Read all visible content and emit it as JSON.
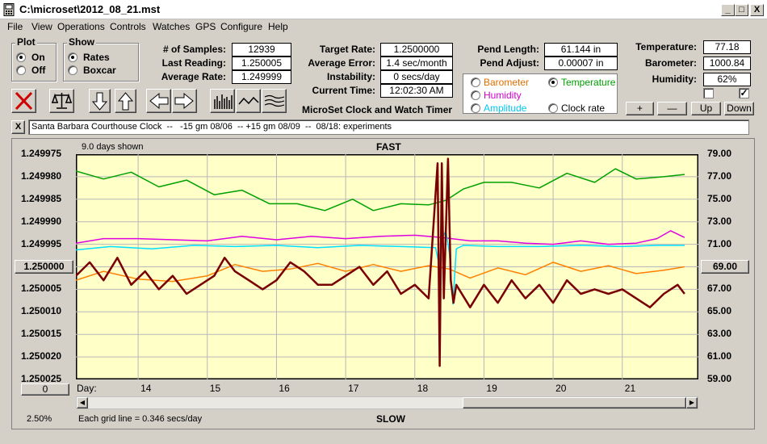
{
  "window": {
    "title": "C:\\microset\\2012_08_21.mst",
    "minimize": "_",
    "maximize": "□",
    "close": "X"
  },
  "menu": [
    "File",
    "View",
    "Operations",
    "Controls",
    "Watches",
    "GPS",
    "Configure",
    "Help"
  ],
  "plot_group": {
    "title": "Plot",
    "on": "On",
    "off": "Off",
    "selected": "On"
  },
  "show_group": {
    "title": "Show",
    "rates": "Rates",
    "boxcar": "Boxcar",
    "selected": "Rates"
  },
  "stats": {
    "samples_label": "# of Samples:",
    "samples": "12939",
    "last_label": "Last Reading:",
    "last": "1.250005",
    "avg_label": "Average Rate:",
    "avg": "1.249999"
  },
  "rates": {
    "target_label": "Target Rate:",
    "target": "1.2500000",
    "error_label": "Average Error:",
    "error": "1.4 sec/month",
    "instab_label": "Instability:",
    "instab": "0 secs/day",
    "time_label": "Current Time:",
    "time": "12:02:30 AM"
  },
  "pend": {
    "length_label": "Pend Length:",
    "length": "61.144 in",
    "adjust_label": "Pend Adjust:",
    "adjust": "0.00007 in"
  },
  "env": {
    "temp_label": "Temperature:",
    "temp": "77.18",
    "baro_label": "Barometer:",
    "baro": "1000.84",
    "hum_label": "Humidity:",
    "hum": "62%"
  },
  "series_select": {
    "barometer": "Barometer",
    "temperature": "Temperature",
    "humidity": "Humidity",
    "amplitude": "Amplitude",
    "clock_rate": "Clock rate",
    "selected": "Temperature"
  },
  "scale_buttons": {
    "plus": "+",
    "minus": "—",
    "up": "Up",
    "down": "Down"
  },
  "app_caption": "MicroSet Clock and Watch Timer",
  "notes": "Santa Barbara Courthouse Clock  --   -15 gm 08/06  -- +15 gm 08/09  --  08/18: experiments",
  "notes_close": "X",
  "chart": {
    "days_shown": "9.0 days shown",
    "top_label": "FAST",
    "bottom_label": "SLOW",
    "day_label": "Day:",
    "grid_note": "Each grid line = 0.346 secs/day",
    "zoom": "2.50%",
    "left_reference": "1.250000",
    "right_reference": "69.00",
    "scroll_value": "0"
  },
  "colors": {
    "plot_bg": "#ffffc8",
    "rate": "#7a0000",
    "temperature": "#00a000",
    "humidity": "#e000e0",
    "barometer": "#ff8000",
    "amplitude": "#00e0ff"
  },
  "chart_data": {
    "type": "line",
    "title": "",
    "xlabel": "Day:",
    "x_ticks": [
      "14",
      "15",
      "16",
      "17",
      "18",
      "19",
      "20",
      "21"
    ],
    "y_left_label": "",
    "y_left_ticks": [
      "1.249975",
      "1.249980",
      "1.249985",
      "1.249990",
      "1.249995",
      "1.250000",
      "1.250005",
      "1.250010",
      "1.250015",
      "1.250020",
      "1.250025"
    ],
    "y_right_ticks": [
      "79.00",
      "77.00",
      "75.00",
      "73.00",
      "71.00",
      "69.00",
      "67.00",
      "65.00",
      "63.00",
      "61.00",
      "59.00"
    ],
    "ylim_left": [
      1.249975,
      1.250025
    ],
    "ylim_right": [
      59,
      79
    ],
    "xlim": [
      13.1,
      22.1
    ],
    "grid": true,
    "series": [
      {
        "name": "Temperature",
        "axis": "right",
        "color_key": "temperature",
        "x": [
          13.1,
          13.5,
          13.9,
          14.3,
          14.7,
          15.1,
          15.5,
          15.9,
          16.3,
          16.7,
          17.1,
          17.4,
          17.8,
          18.2,
          18.45,
          18.7,
          19.0,
          19.4,
          19.8,
          20.2,
          20.6,
          20.9,
          21.2,
          21.6,
          21.9
        ],
        "y": [
          77.5,
          76.8,
          77.4,
          76.1,
          76.7,
          75.4,
          75.8,
          74.6,
          74.6,
          74.0,
          75.0,
          74.0,
          74.6,
          74.5,
          74.9,
          75.9,
          76.5,
          76.5,
          76.0,
          77.3,
          76.5,
          77.7,
          76.8,
          77.0,
          77.2
        ]
      },
      {
        "name": "Humidity",
        "axis": "right",
        "color_key": "humidity",
        "x": [
          13.1,
          13.5,
          14.0,
          14.5,
          15.0,
          15.5,
          16.0,
          16.5,
          17.0,
          17.5,
          18.0,
          18.4,
          18.8,
          19.2,
          19.6,
          20.0,
          20.4,
          20.8,
          21.2,
          21.5,
          21.7,
          21.9
        ],
        "y": [
          71.1,
          71.5,
          71.5,
          71.4,
          71.3,
          71.7,
          71.4,
          71.7,
          71.5,
          71.7,
          71.8,
          71.6,
          71.3,
          71.3,
          71.1,
          71.0,
          71.3,
          71.0,
          71.1,
          71.5,
          72.2,
          71.6
        ]
      },
      {
        "name": "Barometer",
        "axis": "right",
        "color_key": "barometer",
        "x": [
          13.1,
          13.5,
          14.0,
          14.5,
          15.0,
          15.4,
          15.8,
          16.2,
          16.6,
          17.0,
          17.4,
          17.8,
          18.2,
          18.5,
          18.8,
          19.2,
          19.6,
          20.0,
          20.4,
          20.8,
          21.2,
          21.6,
          21.9
        ],
        "y": [
          67.8,
          68.6,
          67.9,
          67.7,
          68.2,
          69.2,
          68.6,
          68.8,
          69.3,
          68.6,
          69.2,
          68.6,
          69.1,
          68.8,
          68.0,
          68.9,
          68.3,
          69.4,
          68.6,
          69.1,
          68.4,
          68.7,
          69.0
        ]
      },
      {
        "name": "Amplitude",
        "axis": "right",
        "color_key": "amplitude",
        "x": [
          13.1,
          13.6,
          14.2,
          14.8,
          15.4,
          16.0,
          16.6,
          17.2,
          17.8,
          18.3,
          18.35,
          18.4,
          18.45,
          18.5,
          18.55,
          18.6,
          18.7,
          19.2,
          19.8,
          20.4,
          21.0,
          21.5,
          21.9
        ],
        "y": [
          70.5,
          70.8,
          70.6,
          70.9,
          70.8,
          70.9,
          70.7,
          70.9,
          70.8,
          70.7,
          69.2,
          71.6,
          72.2,
          70.2,
          65.7,
          70.6,
          70.9,
          70.8,
          70.8,
          70.9,
          70.8,
          70.9,
          70.9
        ]
      },
      {
        "name": "Clock rate",
        "axis": "left",
        "color_key": "rate",
        "x": [
          13.1,
          13.3,
          13.5,
          13.7,
          13.9,
          14.1,
          14.3,
          14.5,
          14.7,
          14.9,
          15.1,
          15.25,
          15.4,
          15.6,
          15.8,
          16.0,
          16.2,
          16.4,
          16.6,
          16.8,
          17.0,
          17.2,
          17.4,
          17.6,
          17.8,
          18.0,
          18.2,
          18.33,
          18.36,
          18.39,
          18.42,
          18.48,
          18.52,
          18.56,
          18.6,
          18.8,
          19.0,
          19.2,
          19.4,
          19.6,
          19.8,
          20.0,
          20.2,
          20.4,
          20.6,
          20.8,
          21.0,
          21.2,
          21.4,
          21.6,
          21.8,
          21.9
        ],
        "y": [
          1.250002,
          1.249999,
          1.250003,
          1.249998,
          1.250004,
          1.250001,
          1.250005,
          1.250002,
          1.250006,
          1.250004,
          1.250002,
          1.249998,
          1.250001,
          1.250003,
          1.250005,
          1.250003,
          1.249999,
          1.250001,
          1.250004,
          1.250004,
          1.250002,
          1.25,
          1.250004,
          1.250001,
          1.250006,
          1.250004,
          1.250007,
          1.249977,
          1.250022,
          1.249977,
          1.250007,
          1.249976,
          1.250003,
          1.250008,
          1.250004,
          1.250009,
          1.250004,
          1.250008,
          1.250003,
          1.250007,
          1.250004,
          1.250008,
          1.250003,
          1.250006,
          1.250005,
          1.250006,
          1.250005,
          1.250007,
          1.250009,
          1.250006,
          1.250004,
          1.250006
        ]
      }
    ]
  }
}
